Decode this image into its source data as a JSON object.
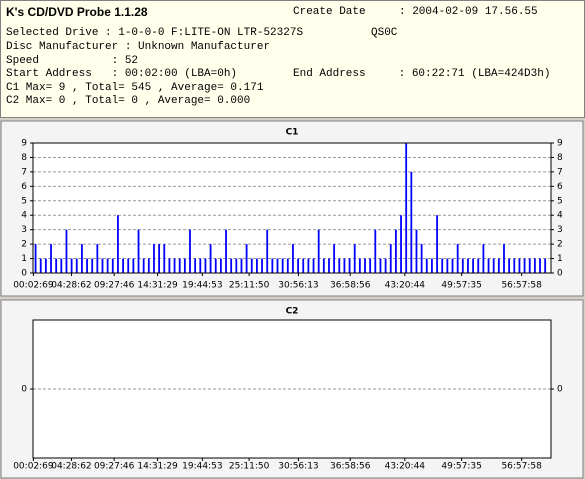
{
  "header": {
    "title": "K's CD/DVD Probe 1.1.28",
    "create_date_label": "Create Date",
    "create_date": ": 2004-02-09 17.56.55",
    "selected_drive": "Selected Drive : 1-0-0-0 F:LITE-ON LTR-52327S",
    "firmware": "QS0C",
    "disc_manufacturer": "Disc Manufacturer : Unknown Manufacturer",
    "speed": "Speed           : 52",
    "start_address": "Start Address   : 00:02:00 (LBA=0h)",
    "end_address": "End Address     : 60:22:71 (LBA=424D3h)",
    "c1_summary": "C1 Max= 9 , Total= 545 , Average= 0.171",
    "c2_summary": "C2 Max= 0 , Total= 0 , Average= 0.000"
  },
  "chart_data": [
    {
      "type": "bar",
      "title": "C1",
      "color": "#0000ff",
      "grid": true,
      "x": [
        0.3,
        0.9,
        1.5,
        2.1,
        2.7,
        3.3,
        3.9,
        4.5,
        5.1,
        5.7,
        6.3,
        6.9,
        7.5,
        8.1,
        8.7,
        9.3,
        9.9,
        10.5,
        11.1,
        11.7,
        12.3,
        12.9,
        13.5,
        14.1,
        14.7,
        15.3,
        15.9,
        16.5,
        17.1,
        17.7,
        18.3,
        18.9,
        19.5,
        20.1,
        20.7,
        21.3,
        21.9,
        22.5,
        23.1,
        23.7,
        24.3,
        24.9,
        25.5,
        26.1,
        26.7,
        27.3,
        27.9,
        28.5,
        29.1,
        29.7,
        30.3,
        30.9,
        31.5,
        32.1,
        32.7,
        33.3,
        33.9,
        34.5,
        35.1,
        35.7,
        36.3,
        36.9,
        37.5,
        38.1,
        38.7,
        39.3,
        39.9,
        40.5,
        41.1,
        41.7,
        42.3,
        42.9,
        43.5,
        44.1,
        44.7,
        45.3,
        45.9,
        46.5,
        47.1,
        47.7,
        48.3,
        48.9,
        49.5,
        50.1,
        50.7,
        51.3,
        51.9,
        52.5,
        53.1,
        53.7,
        54.3,
        54.9,
        55.5,
        56.1,
        56.7,
        57.3,
        57.9,
        58.5,
        59.1,
        59.7
      ],
      "values": [
        2,
        1,
        1,
        2,
        1,
        1,
        3,
        1,
        1,
        2,
        1,
        1,
        2,
        1,
        1,
        1,
        4,
        1,
        1,
        1,
        3,
        1,
        1,
        2,
        2,
        2,
        1,
        1,
        1,
        1,
        3,
        1,
        1,
        1,
        2,
        1,
        1,
        3,
        1,
        1,
        1,
        2,
        1,
        1,
        1,
        3,
        1,
        1,
        1,
        1,
        2,
        1,
        1,
        1,
        1,
        3,
        1,
        1,
        2,
        1,
        1,
        1,
        2,
        1,
        1,
        1,
        3,
        1,
        1,
        2,
        3,
        4,
        9,
        7,
        3,
        2,
        1,
        1,
        4,
        1,
        1,
        1,
        2,
        1,
        1,
        1,
        1,
        2,
        1,
        1,
        1,
        2,
        1,
        1,
        1,
        1,
        1,
        1,
        1,
        1
      ],
      "xlim": [
        0,
        60.38
      ],
      "ylim": [
        0,
        9
      ],
      "yticks": [
        0,
        1,
        2,
        3,
        4,
        5,
        6,
        7,
        8,
        9
      ],
      "xticks": [
        {
          "value": 0.05,
          "label": "00:02:69"
        },
        {
          "value": 4.48,
          "label": "04:28:62"
        },
        {
          "value": 9.46,
          "label": "09:27:46"
        },
        {
          "value": 14.52,
          "label": "14:31:29"
        },
        {
          "value": 19.74,
          "label": "19:44:53"
        },
        {
          "value": 25.19,
          "label": "25:11:50"
        },
        {
          "value": 30.94,
          "label": "30:56:13"
        },
        {
          "value": 36.98,
          "label": "36:58:56"
        },
        {
          "value": 43.34,
          "label": "43:20:44"
        },
        {
          "value": 49.96,
          "label": "49:57:35"
        },
        {
          "value": 56.96,
          "label": "56:57:58"
        }
      ]
    },
    {
      "type": "bar",
      "title": "C2",
      "color": "#0000ff",
      "grid": true,
      "xlim": [
        0,
        60.38
      ],
      "ylim": [
        -1,
        1
      ],
      "yticks": [
        0
      ],
      "xticks": [
        {
          "value": 0.05,
          "label": "00:02:69"
        },
        {
          "value": 4.48,
          "label": "04:28:62"
        },
        {
          "value": 9.46,
          "label": "09:27:46"
        },
        {
          "value": 14.52,
          "label": "14:31:29"
        },
        {
          "value": 19.74,
          "label": "19:44:53"
        },
        {
          "value": 25.19,
          "label": "25:11:50"
        },
        {
          "value": 30.94,
          "label": "30:56:13"
        },
        {
          "value": 36.98,
          "label": "36:58:56"
        },
        {
          "value": 43.34,
          "label": "43:20:44"
        },
        {
          "value": 49.96,
          "label": "49:57:35"
        },
        {
          "value": 56.96,
          "label": "56:57:58"
        }
      ]
    }
  ]
}
